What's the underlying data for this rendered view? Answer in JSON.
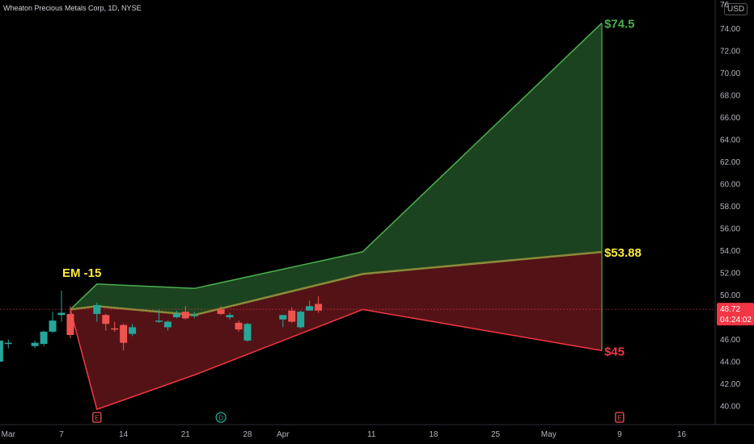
{
  "title": "Wheaton Precious Metals Corp, 1D, NYSE",
  "currency": "USD",
  "chart_data": {
    "type": "candlestick",
    "ylim": [
      38.5,
      76
    ],
    "yticks": [
      40,
      42,
      44,
      46,
      48,
      50,
      52,
      54,
      56,
      58,
      60,
      62,
      64,
      66,
      68,
      70,
      72,
      74
    ],
    "ytick_top_partial": "76",
    "x_ticks": [
      {
        "label": "Mar",
        "date": "2024-03-01"
      },
      {
        "label": "7",
        "date": "2024-03-07"
      },
      {
        "label": "14",
        "date": "2024-03-14"
      },
      {
        "label": "21",
        "date": "2024-03-21"
      },
      {
        "label": "28",
        "date": "2024-03-28"
      },
      {
        "label": "Apr",
        "date": "2024-04-01"
      },
      {
        "label": "11",
        "date": "2024-04-11"
      },
      {
        "label": "18",
        "date": "2024-04-18"
      },
      {
        "label": "25",
        "date": "2024-04-25"
      },
      {
        "label": "May",
        "date": "2024-05-01"
      },
      {
        "label": "9",
        "date": "2024-05-09"
      },
      {
        "label": "16",
        "date": "2024-05-16"
      }
    ],
    "candles": [
      {
        "date": "2024-02-28",
        "o": 44.2,
        "h": 44.4,
        "l": 43.6,
        "c": 43.7
      },
      {
        "date": "2024-02-29",
        "o": 44.0,
        "h": 46.0,
        "l": 43.9,
        "c": 45.9
      },
      {
        "date": "2024-03-01",
        "o": 45.6,
        "h": 46.0,
        "l": 45.2,
        "c": 45.7
      },
      {
        "date": "2024-03-04",
        "o": 45.4,
        "h": 45.9,
        "l": 45.2,
        "c": 45.7
      },
      {
        "date": "2024-03-05",
        "o": 45.6,
        "h": 46.8,
        "l": 45.4,
        "c": 46.7
      },
      {
        "date": "2024-03-06",
        "o": 46.7,
        "h": 48.5,
        "l": 46.6,
        "c": 47.7
      },
      {
        "date": "2024-03-07",
        "o": 48.2,
        "h": 50.4,
        "l": 47.6,
        "c": 48.4
      },
      {
        "date": "2024-03-08",
        "o": 48.3,
        "h": 49.0,
        "l": 46.1,
        "c": 46.4
      },
      {
        "date": "2024-03-11",
        "o": 48.3,
        "h": 49.3,
        "l": 47.6,
        "c": 49.1
      },
      {
        "date": "2024-03-12",
        "o": 48.2,
        "h": 48.3,
        "l": 46.8,
        "c": 47.4
      },
      {
        "date": "2024-03-13",
        "o": 47.0,
        "h": 47.6,
        "l": 46.7,
        "c": 46.9
      },
      {
        "date": "2024-03-14",
        "o": 47.3,
        "h": 47.4,
        "l": 45.0,
        "c": 45.7
      },
      {
        "date": "2024-03-15",
        "o": 46.5,
        "h": 47.4,
        "l": 46.3,
        "c": 47.1
      },
      {
        "date": "2024-03-18",
        "o": 47.7,
        "h": 48.7,
        "l": 47.5,
        "c": 47.7
      },
      {
        "date": "2024-03-19",
        "o": 47.1,
        "h": 47.7,
        "l": 46.8,
        "c": 47.6
      },
      {
        "date": "2024-03-20",
        "o": 48.0,
        "h": 48.6,
        "l": 47.9,
        "c": 48.3
      },
      {
        "date": "2024-03-21",
        "o": 48.5,
        "h": 49.0,
        "l": 47.8,
        "c": 47.9
      },
      {
        "date": "2024-03-22",
        "o": 48.1,
        "h": 48.5,
        "l": 47.9,
        "c": 48.2
      },
      {
        "date": "2024-03-25",
        "o": 48.7,
        "h": 49.0,
        "l": 48.2,
        "c": 48.3
      },
      {
        "date": "2024-03-26",
        "o": 48.0,
        "h": 48.4,
        "l": 47.8,
        "c": 48.2
      },
      {
        "date": "2024-03-27",
        "o": 47.5,
        "h": 47.7,
        "l": 46.7,
        "c": 46.9
      },
      {
        "date": "2024-03-28",
        "o": 45.9,
        "h": 47.5,
        "l": 45.8,
        "c": 47.4
      },
      {
        "date": "2024-04-01",
        "o": 47.8,
        "h": 48.2,
        "l": 47.1,
        "c": 48.2
      },
      {
        "date": "2024-04-02",
        "o": 48.6,
        "h": 48.9,
        "l": 47.5,
        "c": 47.6
      },
      {
        "date": "2024-04-03",
        "o": 47.1,
        "h": 48.6,
        "l": 47.0,
        "c": 48.5
      },
      {
        "date": "2024-04-04",
        "o": 48.6,
        "h": 49.5,
        "l": 48.6,
        "c": 49.0
      },
      {
        "date": "2024-04-05",
        "o": 49.2,
        "h": 49.9,
        "l": 48.4,
        "c": 48.6
      }
    ],
    "envelope": {
      "dates": [
        "2024-03-08",
        "2024-03-11",
        "2024-03-22",
        "2024-04-10",
        "2024-05-07"
      ],
      "upper": [
        48.7,
        51.0,
        50.6,
        53.9,
        74.5
      ],
      "middle": [
        48.7,
        49.0,
        48.2,
        51.9,
        53.88
      ],
      "lower": [
        48.7,
        39.7,
        42.8,
        48.7,
        45.0
      ]
    },
    "upper_label": "$74.5",
    "middle_label": "$53.88",
    "lower_label": "$45",
    "em_label": "EM -15",
    "last_price": "48.72",
    "countdown": "04:24:02",
    "events": [
      {
        "date": "2024-03-11",
        "letter": "E",
        "kind": "earnings"
      },
      {
        "date": "2024-03-25",
        "letter": "D",
        "kind": "dividend"
      },
      {
        "date": "2024-05-09",
        "letter": "E",
        "kind": "earnings"
      }
    ],
    "colors": {
      "up": "#26a69a",
      "down": "#ef5350",
      "upper_fill": "#1f4a22",
      "upper_line": "#4caf50",
      "lower_fill": "#5c1518",
      "lower_line": "#f23645",
      "middle_line": "#8a8a3a",
      "em_text": "#ffeb3b",
      "mid_text": "#ffeb3b",
      "up_text": "#4caf50",
      "low_text": "#f23645",
      "price_tag": "#f23645",
      "price_line": "#f23645"
    }
  }
}
